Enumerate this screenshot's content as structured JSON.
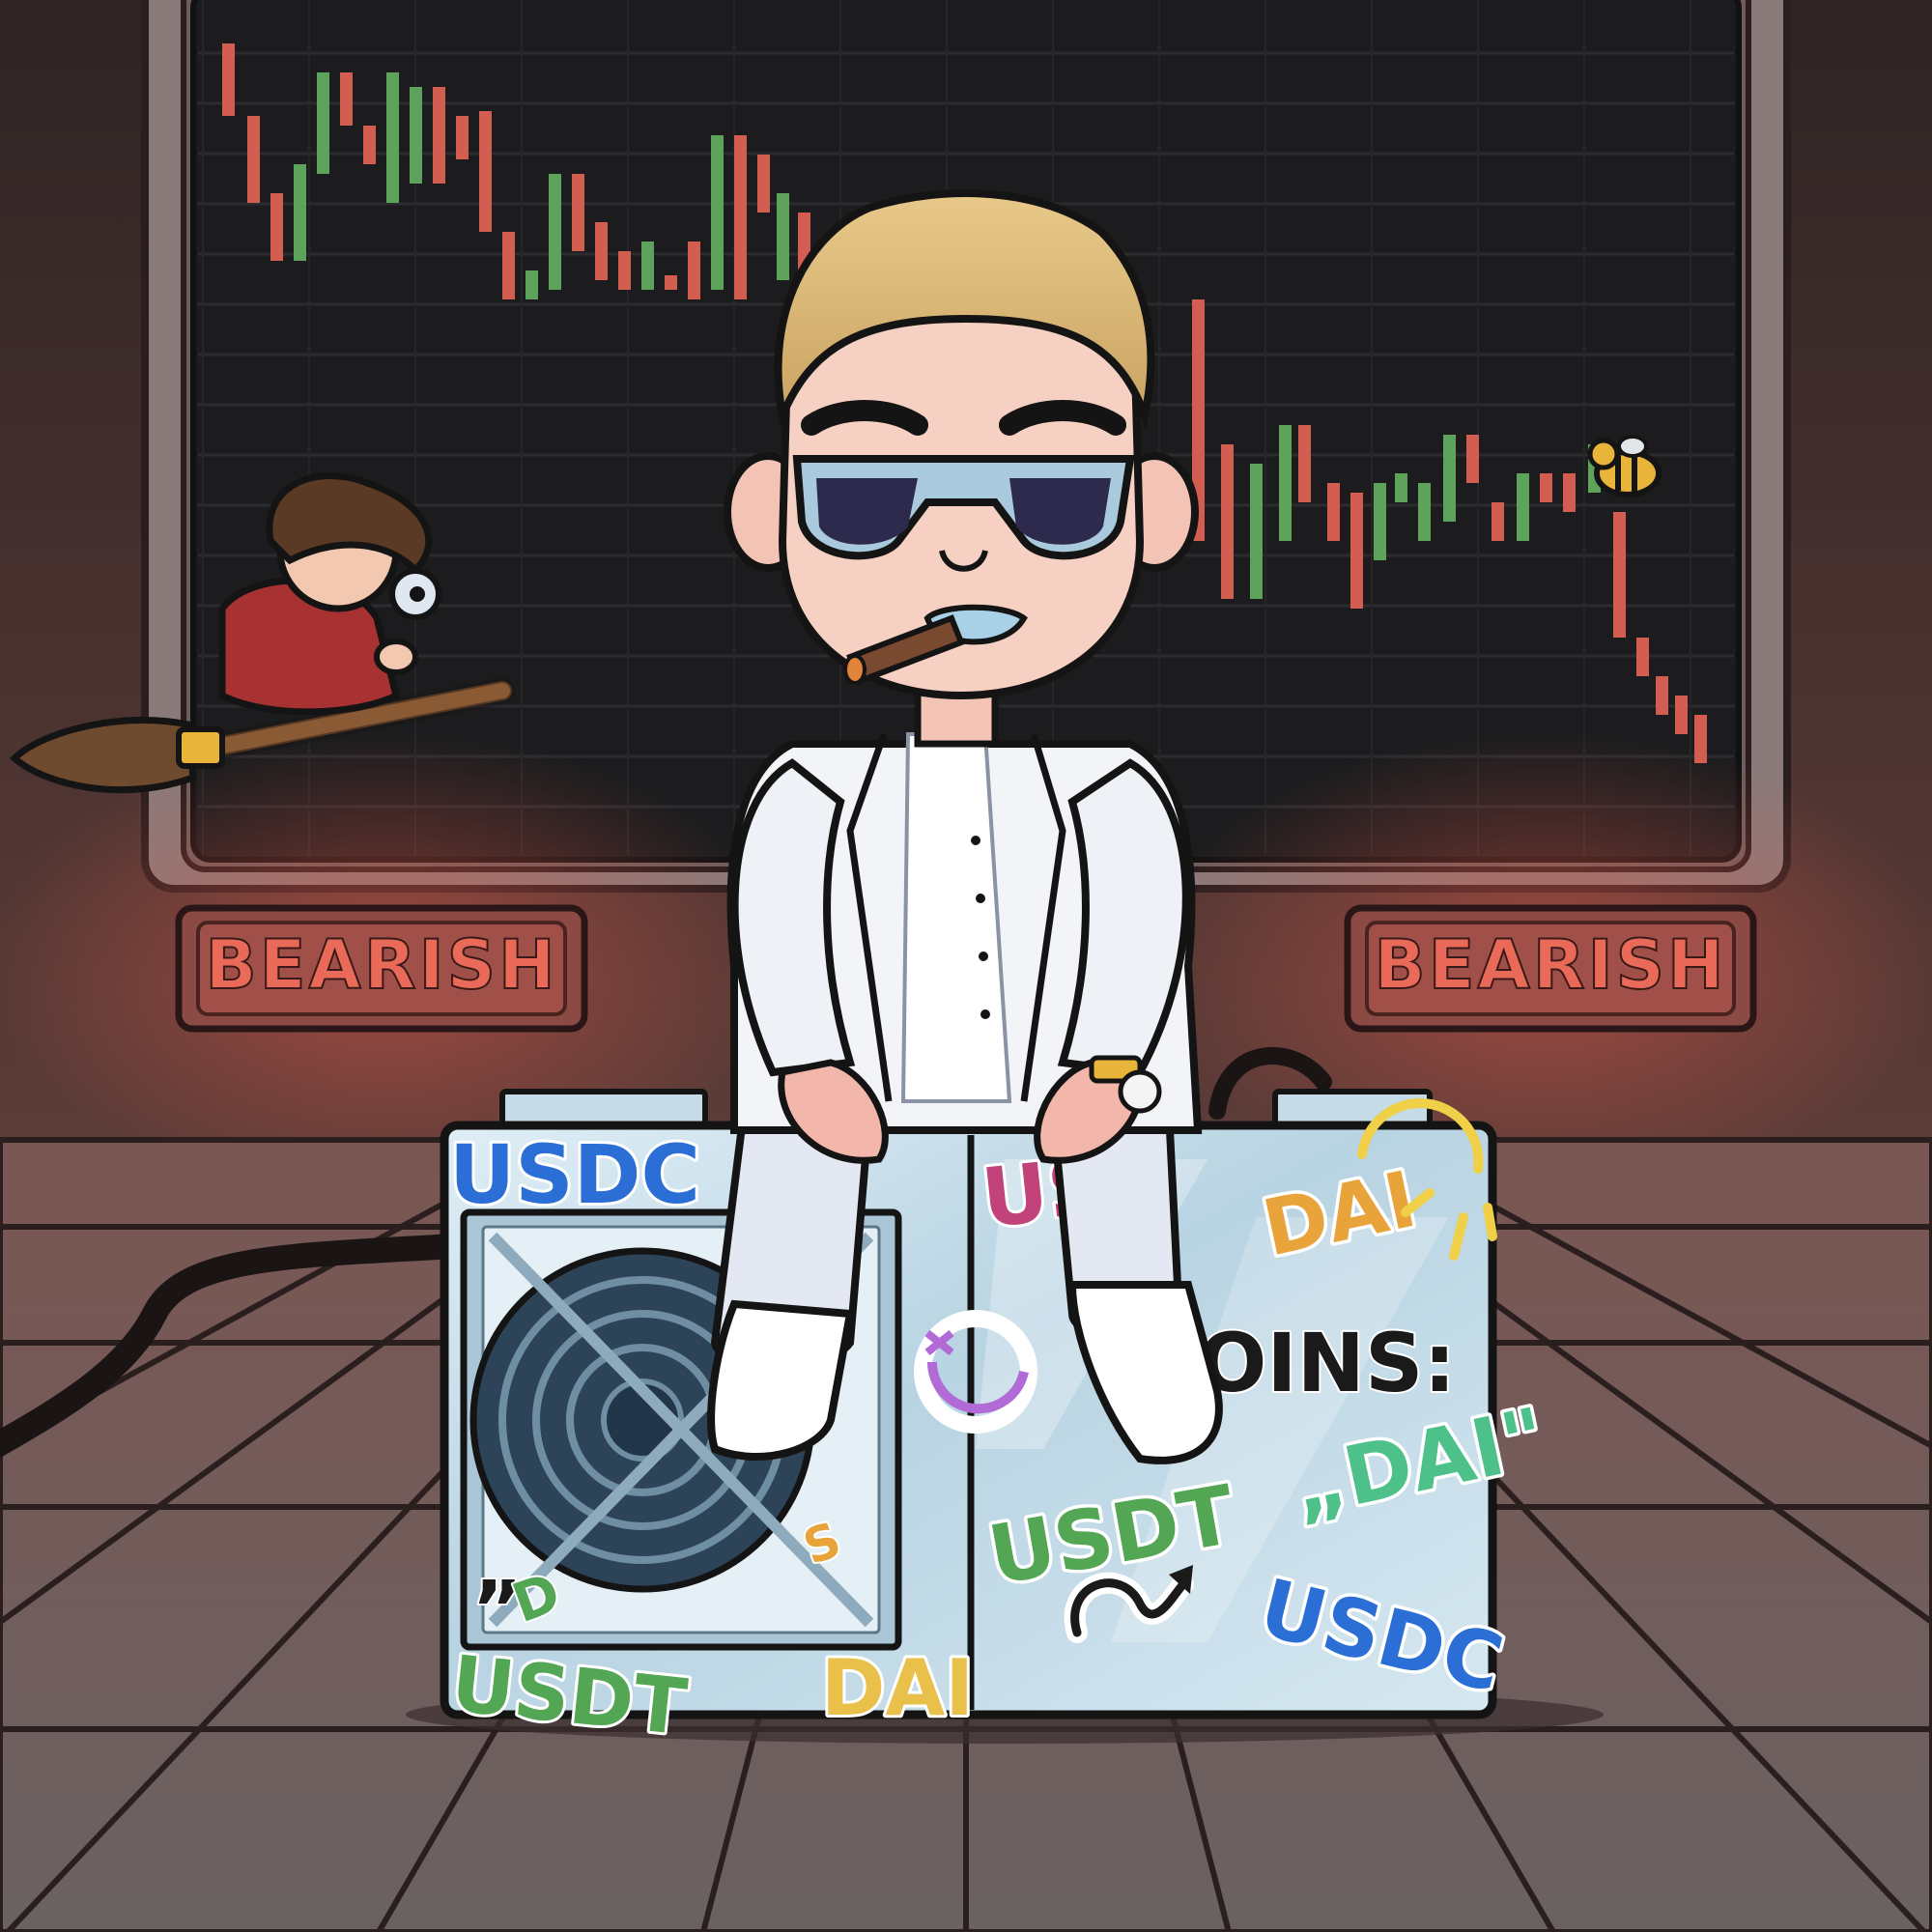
{
  "signs": {
    "left": "BEARISH",
    "right": "BEARISH"
  },
  "stickers": {
    "usdc_top_left": "USDC",
    "usdc_bottom_right": "USDC",
    "usdt_right": "USDT",
    "usdt_bottom_left": "USDT",
    "dai_top_right": "DAI",
    "dai_right_quoted": "„DAI\"",
    "dai_bottom": "DAI",
    "coins_partial": "OINS:",
    "usdc_partial_pink": "US",
    "quote_mark_left": "„",
    "letter_d": "D",
    "letter_s": "S"
  },
  "colors": {
    "candle_up": "#5ea35b",
    "candle_down": "#d35d50",
    "screen_bg": "#1c1c1e",
    "sign_glow": "#e0584a",
    "floor_dark": "#5a4a4a",
    "usdc_blue": "#2b6fd6",
    "usdt_green": "#53a653",
    "dai_orange": "#e8a43a"
  },
  "icons": {
    "character": "suited-man-with-sunglasses-icon",
    "fan": "cooling-fan-icon",
    "broom_rider": "wizard-on-broom-icon",
    "bee": "bee-icon",
    "cigar": "cigar-icon",
    "watch": "gold-watch-icon"
  }
}
